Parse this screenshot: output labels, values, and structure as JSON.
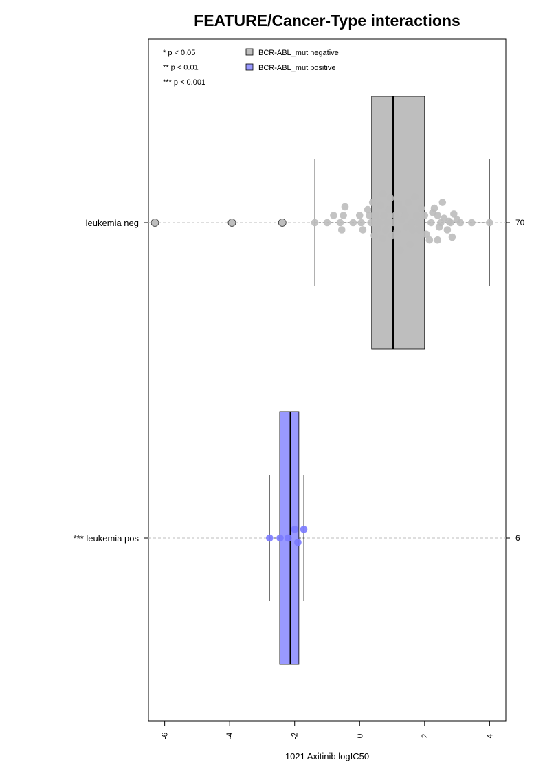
{
  "chart_data": {
    "type": "boxplot",
    "orientation": "horizontal",
    "title": "FEATURE/Cancer-Type interactions",
    "xlabel": "1021 Axitinib logIC50",
    "xlim": [
      -6.5,
      4.5
    ],
    "xticks": [
      -6,
      -4,
      -2,
      0,
      2,
      4
    ],
    "xtick_labels": [
      "-6",
      "-4",
      "-2",
      "0",
      "2",
      "4"
    ],
    "significance_legend": [
      "* p < 0.05",
      "** p < 0.01",
      "*** p < 0.001"
    ],
    "legend": [
      {
        "label": "BCR-ABL_mut negative",
        "color": "#bebebe"
      },
      {
        "label": "BCR-ABL_mut positive",
        "color": "#9999ff"
      }
    ],
    "groups": [
      {
        "label": "leukemia neg",
        "count": "70",
        "box_color": "#bebebe",
        "point_color": "#bdbdbd",
        "whisker_low": -1.38,
        "q1": 0.37,
        "median": 1.03,
        "q3": 2.0,
        "whisker_high": 4.0,
        "outliers": [
          -6.3,
          -3.93,
          -2.38
        ],
        "points": [
          [
            -1.38,
            0
          ],
          [
            -1.0,
            0
          ],
          [
            -0.6,
            0
          ],
          [
            -0.8,
            0.5
          ],
          [
            -0.5,
            0.5
          ],
          [
            -0.45,
            1.1
          ],
          [
            -0.55,
            -0.5
          ],
          [
            -0.2,
            0
          ],
          [
            0.0,
            0.5
          ],
          [
            0.05,
            0
          ],
          [
            0.1,
            -0.5
          ],
          [
            0.25,
            0.9
          ],
          [
            0.3,
            0.5
          ],
          [
            0.35,
            0
          ],
          [
            0.4,
            1.4
          ],
          [
            0.45,
            -0.9
          ],
          [
            0.5,
            0.5
          ],
          [
            0.55,
            -0.4
          ],
          [
            0.6,
            0
          ],
          [
            0.65,
            1.2
          ],
          [
            0.7,
            -1.1
          ],
          [
            0.75,
            0.5
          ],
          [
            0.72,
            2.0
          ],
          [
            0.8,
            -0.5
          ],
          [
            0.85,
            0
          ],
          [
            0.9,
            0.9
          ],
          [
            0.95,
            1.7
          ],
          [
            1.0,
            -0.9
          ],
          [
            1.05,
            0
          ],
          [
            1.1,
            0.5
          ],
          [
            1.15,
            -0.6
          ],
          [
            1.2,
            1.3
          ],
          [
            1.25,
            -1.9
          ],
          [
            1.3,
            0.2
          ],
          [
            1.35,
            0.9
          ],
          [
            1.4,
            0.5
          ],
          [
            1.45,
            -0.3
          ],
          [
            1.5,
            1.4
          ],
          [
            1.55,
            -1.5
          ],
          [
            1.6,
            0
          ],
          [
            1.62,
            -0.5
          ],
          [
            1.7,
            1.8
          ],
          [
            1.75,
            0.5
          ],
          [
            1.8,
            0
          ],
          [
            1.85,
            -0.5
          ],
          [
            1.9,
            1.0
          ],
          [
            2.0,
            0.5
          ],
          [
            2.05,
            -0.8
          ],
          [
            2.15,
            -1.2
          ],
          [
            2.2,
            0
          ],
          [
            2.25,
            0.7
          ],
          [
            2.3,
            1.0
          ],
          [
            2.4,
            0.5
          ],
          [
            2.45,
            -0.3
          ],
          [
            2.4,
            -1.2
          ],
          [
            2.5,
            0
          ],
          [
            2.55,
            1.4
          ],
          [
            2.6,
            0.3
          ],
          [
            2.7,
            -0.5
          ],
          [
            2.75,
            0.1
          ],
          [
            2.8,
            0
          ],
          [
            2.85,
            -1.0
          ],
          [
            2.9,
            0.6
          ],
          [
            3.0,
            0.2
          ],
          [
            3.1,
            0
          ],
          [
            3.45,
            0
          ],
          [
            4.0,
            0
          ]
        ]
      },
      {
        "label": "*** leukemia pos",
        "count": "6",
        "box_color": "#9999ff",
        "point_color": "#7a7aff",
        "whisker_low": -2.77,
        "q1": -2.46,
        "median": -2.13,
        "q3": -1.87,
        "whisker_high": -1.72,
        "outliers": [],
        "points": [
          [
            -2.77,
            0
          ],
          [
            -2.45,
            0
          ],
          [
            -2.2,
            0
          ],
          [
            -2.0,
            0.6
          ],
          [
            -1.9,
            -0.3
          ],
          [
            -1.72,
            0.6
          ]
        ]
      }
    ]
  }
}
